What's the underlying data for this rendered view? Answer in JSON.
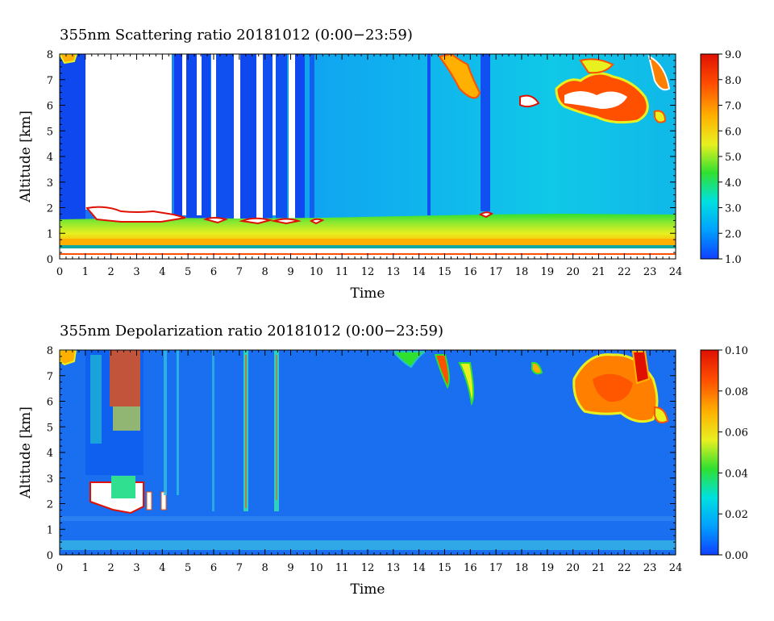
{
  "chart_data": [
    {
      "type": "heatmap",
      "title": "355nm Scattering ratio  20181012 (0:00−23:59)",
      "xlabel": "Time",
      "ylabel": "Altitude [km]",
      "xlim": [
        0,
        24
      ],
      "ylim": [
        0,
        8
      ],
      "x_ticks": [
        "0",
        "1",
        "2",
        "3",
        "4",
        "5",
        "6",
        "7",
        "8",
        "9",
        "10",
        "11",
        "12",
        "13",
        "14",
        "15",
        "16",
        "17",
        "18",
        "19",
        "20",
        "21",
        "22",
        "23",
        "24"
      ],
      "y_ticks": [
        "0",
        "1",
        "2",
        "3",
        "4",
        "5",
        "6",
        "7",
        "8"
      ],
      "colorbar": {
        "min": 1.0,
        "max": 9.0,
        "ticks": [
          "1.0",
          "2.0",
          "3.0",
          "4.0",
          "5.0",
          "6.0",
          "7.0",
          "8.0",
          "9.0"
        ],
        "colors": [
          "#1040ff",
          "#00a0ff",
          "#00e0e0",
          "#30e030",
          "#e8f020",
          "#ffb000",
          "#ff5000",
          "#e01000"
        ]
      },
      "features": {
        "boundary_layer_top_km": 1.6,
        "low_value_column_hours": [
          [
            0.0,
            1.0
          ],
          [
            4.5,
            9.5
          ],
          [
            14.4,
            14.5
          ],
          [
            16.4,
            16.8
          ]
        ],
        "missing_data_hours": [
          [
            1.0,
            4.4
          ]
        ],
        "high_clouds_hours": [
          [
            14.5,
            17.0
          ],
          [
            18.0,
            18.5
          ],
          [
            19.8,
            23.9
          ]
        ],
        "high_clouds_altitude_km": [
          5.3,
          8.0
        ]
      }
    },
    {
      "type": "heatmap",
      "title": "355nm Depolarization ratio  20181012 (0:00−23:59)",
      "xlabel": "Time",
      "ylabel": "Altitude [km]",
      "xlim": [
        0,
        24
      ],
      "ylim": [
        0,
        8
      ],
      "x_ticks": [
        "0",
        "1",
        "2",
        "3",
        "4",
        "5",
        "6",
        "7",
        "8",
        "9",
        "10",
        "11",
        "12",
        "13",
        "14",
        "15",
        "16",
        "17",
        "18",
        "19",
        "20",
        "21",
        "22",
        "23",
        "24"
      ],
      "y_ticks": [
        "0",
        "1",
        "2",
        "3",
        "4",
        "5",
        "6",
        "7",
        "8"
      ],
      "colorbar": {
        "min": 0.0,
        "max": 0.1,
        "ticks": [
          "0.00",
          "0.02",
          "0.04",
          "0.06",
          "0.08",
          "0.10"
        ],
        "colors": [
          "#1040ff",
          "#00a0ff",
          "#00e0e0",
          "#30e030",
          "#e8f020",
          "#ffb000",
          "#ff5000",
          "#e01000"
        ]
      },
      "features": {
        "noisy_region_hours": [
          [
            1.0,
            3.2
          ]
        ],
        "noisy_region_altitude_km": [
          3.0,
          8.0
        ],
        "high_clouds_hours": [
          [
            12.5,
            16.0
          ],
          [
            18.5,
            23.9
          ]
        ],
        "high_clouds_altitude_km": [
          5.0,
          8.0
        ]
      }
    }
  ]
}
